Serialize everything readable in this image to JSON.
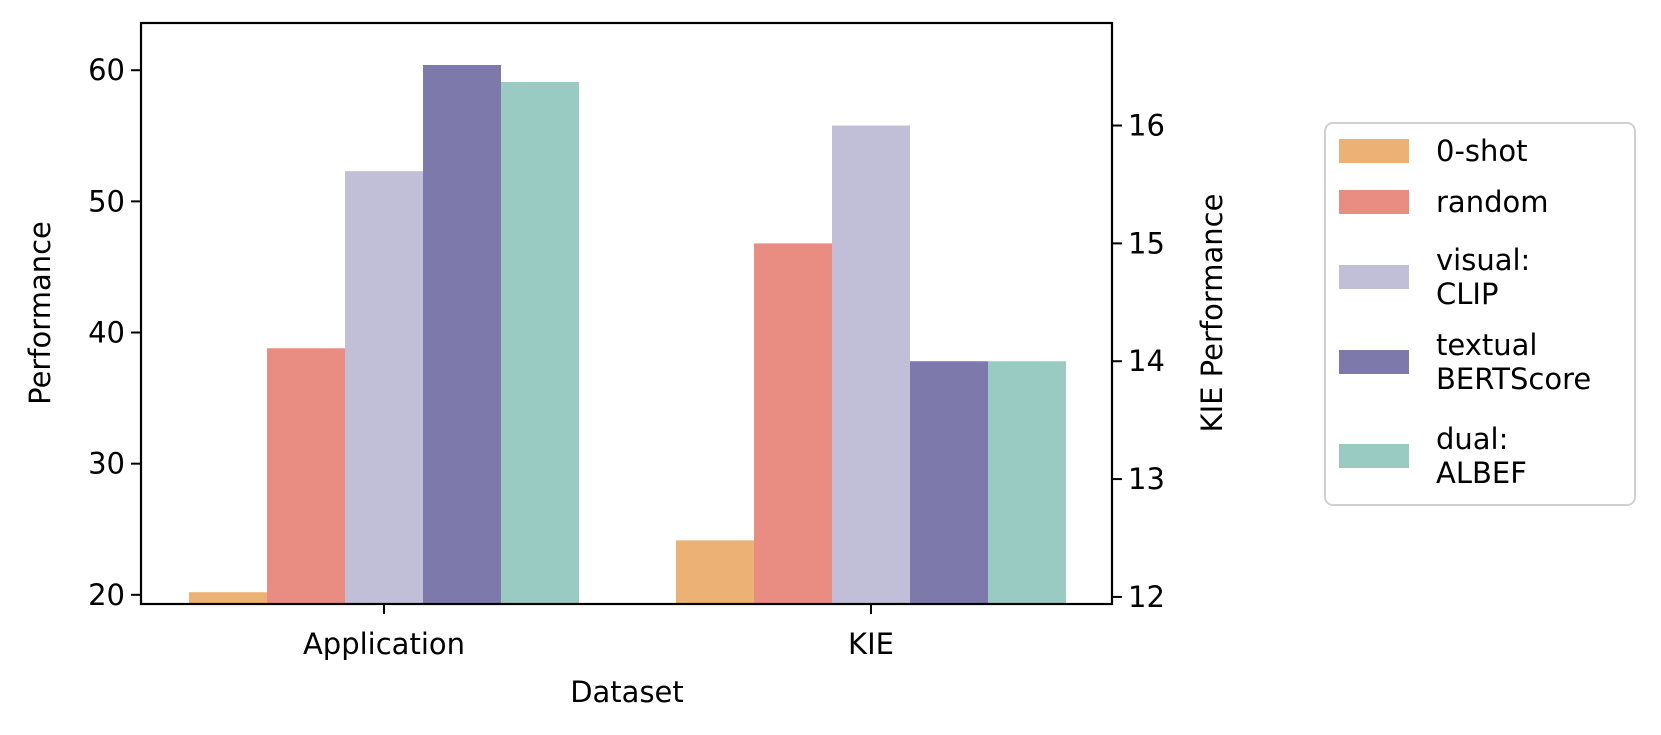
{
  "chart_data": {
    "type": "bar",
    "categories": [
      "Application",
      "KIE"
    ],
    "xlabel": "Dataset",
    "ylabel": "Performance",
    "y2label": "KIE Performance",
    "ylim": [
      19.3,
      63.6
    ],
    "yticks": [
      20,
      30,
      40,
      50,
      60
    ],
    "y2lim": [
      11.94,
      16.87
    ],
    "y2ticks": [
      12,
      13,
      14,
      15,
      16
    ],
    "legend_position": "right-outside",
    "series": [
      {
        "name": "0-shot",
        "label_lines": [
          "0-shot"
        ],
        "color": "#ebb175",
        "values": [
          20.2,
          12.48
        ],
        "axis": [
          "left",
          "right"
        ]
      },
      {
        "name": "random",
        "label_lines": [
          "random"
        ],
        "color": "#e98c82",
        "values": [
          38.8,
          15.0
        ],
        "axis": [
          "left",
          "right"
        ]
      },
      {
        "name": "visual: CLIP",
        "label_lines": [
          "visual:",
          "CLIP"
        ],
        "color": "#c1bed7",
        "values": [
          52.3,
          16.0
        ],
        "axis": [
          "left",
          "right"
        ]
      },
      {
        "name": "textual BERTScore",
        "label_lines": [
          "textual",
          "BERTScore"
        ],
        "color": "#7d79ab",
        "values": [
          60.4,
          14.0
        ],
        "axis": [
          "left",
          "right"
        ]
      },
      {
        "name": "dual: ALBEF",
        "label_lines": [
          "dual:",
          "ALBEF"
        ],
        "color": "#99cbc3",
        "values": [
          59.1,
          14.0
        ],
        "axis": [
          "left",
          "right"
        ]
      }
    ]
  }
}
